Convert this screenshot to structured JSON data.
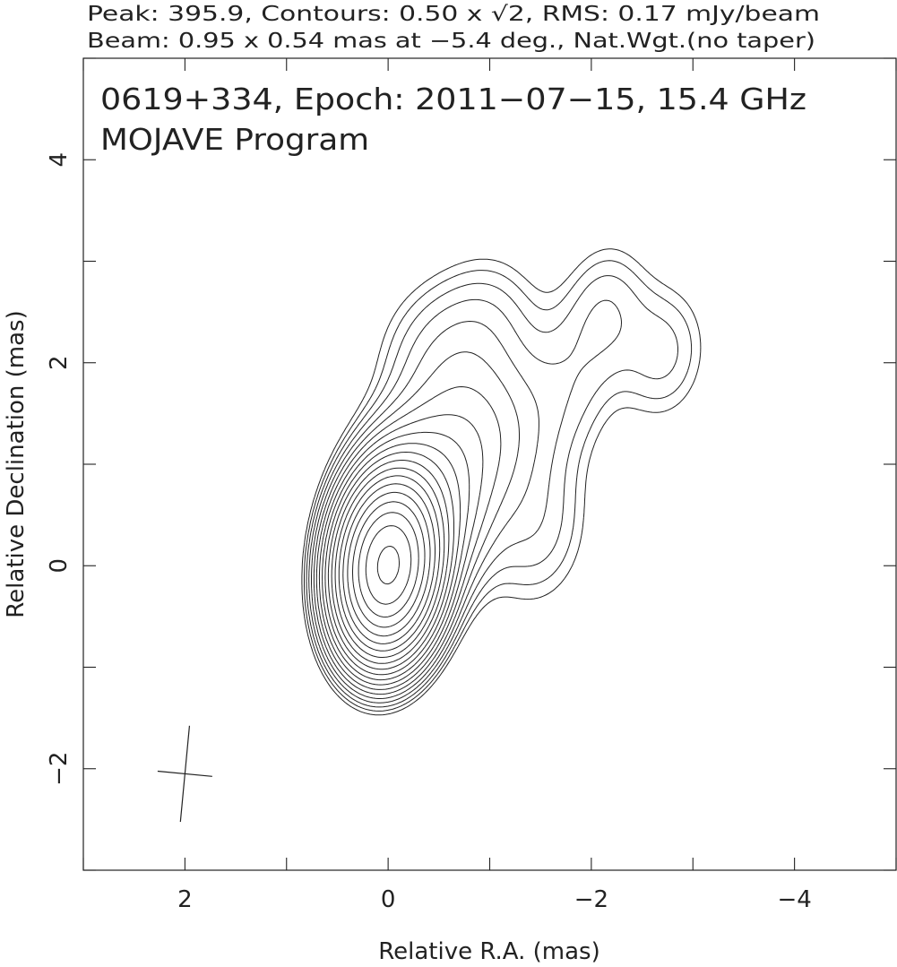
{
  "chart_data": {
    "type": "contour",
    "header": {
      "line1": "Peak: 395.9, Contours: 0.50 x √2, RMS: 0.17 mJy/beam",
      "line2": "Beam: 0.95 x 0.54 mas at −5.4 deg., Nat.Wgt.(no taper)"
    },
    "title": "0619+334, Epoch: 2011−07−15, 15.4 GHz",
    "subtitle": "MOJAVE Program",
    "xlabel": "Relative R.A. (mas)",
    "ylabel": "Relative Declination (mas)",
    "xlim": [
      3,
      -5
    ],
    "ylim": [
      -3,
      5
    ],
    "xticks": [
      2,
      0,
      -2,
      -4
    ],
    "xtick_labels": [
      "2",
      "0",
      "−2",
      "−4"
    ],
    "yticks": [
      -2,
      0,
      2,
      4
    ],
    "ytick_labels": [
      "−2",
      "0",
      "2",
      "4"
    ],
    "peak_mJy_per_beam": 395.9,
    "rms_mJy_per_beam": 0.17,
    "lowest_contour_mJy": 0.5,
    "contour_factor": "√2",
    "beam": {
      "major_mas": 0.95,
      "minor_mas": 0.54,
      "pa_deg": -5.4,
      "ra": 2.0,
      "dec": -2.05
    },
    "weighting": "Nat.Wgt.(no taper)",
    "frequency": "15.4 GHz",
    "epoch": "2011-07-15",
    "source": "0619+334"
  }
}
